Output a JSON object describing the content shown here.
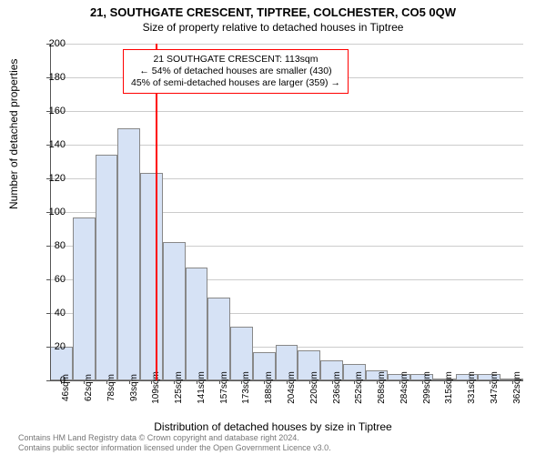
{
  "title": "21, SOUTHGATE CRESCENT, TIPTREE, COLCHESTER, CO5 0QW",
  "subtitle": "Size of property relative to detached houses in Tiptree",
  "y_axis_title": "Number of detached properties",
  "x_axis_title": "Distribution of detached houses by size in Tiptree",
  "annotation": {
    "line1": "21 SOUTHGATE CRESCENT: 113sqm",
    "line2": "← 54% of detached houses are smaller (430)",
    "line3": "45% of semi-detached houses are larger (359) →"
  },
  "footer": {
    "line1": "Contains HM Land Registry data © Crown copyright and database right 2024.",
    "line2": "Contains public sector information licensed under the Open Government Licence v3.0."
  },
  "chart": {
    "type": "histogram",
    "bar_fill": "#d6e2f5",
    "bar_border": "#888888",
    "grid_color": "#cccccc",
    "ref_line_color": "#ff0000",
    "ref_value_x": 113,
    "background": "#ffffff",
    "ylim": [
      0,
      200
    ],
    "ytick_step": 20,
    "x_start": 38,
    "x_step": 16,
    "x_labels": [
      "46sqm",
      "62sqm",
      "78sqm",
      "93sqm",
      "109sqm",
      "125sqm",
      "141sqm",
      "157sqm",
      "173sqm",
      "188sqm",
      "204sqm",
      "220sqm",
      "236sqm",
      "252sqm",
      "268sqm",
      "284sqm",
      "299sqm",
      "315sqm",
      "331sqm",
      "347sqm",
      "362sqm"
    ],
    "bars": [
      20,
      97,
      134,
      150,
      123,
      82,
      67,
      49,
      32,
      17,
      21,
      18,
      12,
      10,
      6,
      4,
      4,
      1,
      4,
      4,
      1
    ],
    "title_fontsize": 13,
    "subtitle_fontsize": 12,
    "axis_title_fontsize": 12,
    "tick_fontsize": 11,
    "annotation_fontsize": 10.5
  }
}
